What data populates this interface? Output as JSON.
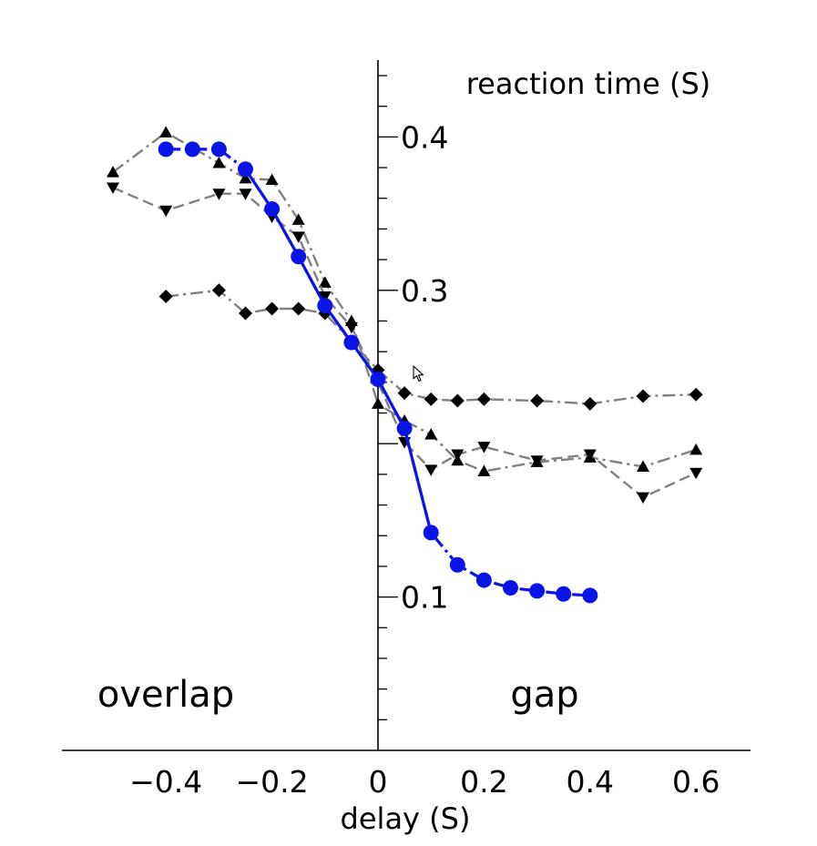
{
  "chart_data": {
    "type": "line",
    "title": "",
    "xlabel": "delay (S)",
    "ylabel": "reaction time (S)",
    "xlim": [
      -0.59,
      0.69
    ],
    "ylim": [
      0.0,
      0.45
    ],
    "xticks": [
      -0.4,
      -0.2,
      0,
      0.2,
      0.4,
      0.6
    ],
    "xtick_labels": [
      "−0.4",
      "−0.2",
      "0",
      "0.2",
      "0.4",
      "0.6"
    ],
    "yticks": [
      0.1,
      0.3,
      0.4
    ],
    "ytick_labels": [
      "0.1",
      "0.3",
      "0.4"
    ],
    "yaxis_position": "x=0",
    "grid": false,
    "legend": "none",
    "annotations": [
      {
        "text": "overlap",
        "side": "left"
      },
      {
        "text": "gap",
        "side": "right"
      }
    ],
    "series": [
      {
        "marker": "diamond",
        "color": "#000000",
        "line_color": "#808080",
        "line_style": "dashdot",
        "points": [
          [
            -0.4,
            0.296
          ],
          [
            -0.3,
            0.3
          ],
          [
            -0.25,
            0.285
          ],
          [
            -0.2,
            0.288
          ],
          [
            -0.15,
            0.288
          ],
          [
            -0.1,
            0.285
          ],
          [
            0,
            0.248
          ],
          [
            0.05,
            0.233
          ],
          [
            0.1,
            0.229
          ],
          [
            0.15,
            0.228
          ],
          [
            0.2,
            0.229
          ],
          [
            0.3,
            0.228
          ],
          [
            0.4,
            0.226
          ],
          [
            0.5,
            0.231
          ],
          [
            0.6,
            0.232
          ]
        ]
      },
      {
        "marker": "triangle-up",
        "color": "#000000",
        "line_color": "#808080",
        "line_style": "dashdot",
        "points": [
          [
            -0.5,
            0.377
          ],
          [
            -0.4,
            0.403
          ],
          [
            -0.3,
            0.383
          ],
          [
            -0.25,
            0.373
          ],
          [
            -0.2,
            0.372
          ],
          [
            -0.15,
            0.346
          ],
          [
            -0.1,
            0.305
          ],
          [
            -0.05,
            0.28
          ],
          [
            0,
            0.226
          ],
          [
            0.05,
            0.215
          ],
          [
            0.1,
            0.206
          ],
          [
            0.15,
            0.189
          ],
          [
            0.2,
            0.182
          ],
          [
            0.3,
            0.188
          ],
          [
            0.4,
            0.191
          ],
          [
            0.5,
            0.185
          ],
          [
            0.6,
            0.196
          ]
        ]
      },
      {
        "marker": "triangle-down",
        "color": "#000000",
        "line_color": "#808080",
        "line_style": "dashed",
        "points": [
          [
            -0.5,
            0.367
          ],
          [
            -0.4,
            0.352
          ],
          [
            -0.3,
            0.363
          ],
          [
            -0.25,
            0.363
          ],
          [
            -0.2,
            0.348
          ],
          [
            -0.15,
            0.335
          ],
          [
            -0.1,
            0.296
          ],
          [
            -0.05,
            0.276
          ],
          [
            0,
            0.24
          ],
          [
            0.05,
            0.201
          ],
          [
            0.1,
            0.183
          ],
          [
            0.15,
            0.193
          ],
          [
            0.2,
            0.198
          ],
          [
            0.3,
            0.189
          ],
          [
            0.4,
            0.193
          ],
          [
            0.5,
            0.165
          ],
          [
            0.6,
            0.181
          ]
        ]
      },
      {
        "marker": "circle",
        "color": "#0a14e6",
        "line_color": "#0a14e6",
        "line_style": "mixed",
        "points": [
          [
            -0.4,
            0.392
          ],
          [
            -0.35,
            0.392
          ],
          [
            -0.3,
            0.392
          ],
          [
            -0.25,
            0.379
          ],
          [
            -0.2,
            0.353
          ],
          [
            -0.15,
            0.322
          ],
          [
            -0.1,
            0.29
          ],
          [
            -0.05,
            0.266
          ],
          [
            0,
            0.242
          ],
          [
            0.05,
            0.21
          ],
          [
            0.1,
            0.142
          ],
          [
            0.15,
            0.121
          ],
          [
            0.2,
            0.111
          ],
          [
            0.25,
            0.106
          ],
          [
            0.3,
            0.104
          ],
          [
            0.35,
            0.102
          ],
          [
            0.4,
            0.101
          ]
        ]
      }
    ]
  }
}
